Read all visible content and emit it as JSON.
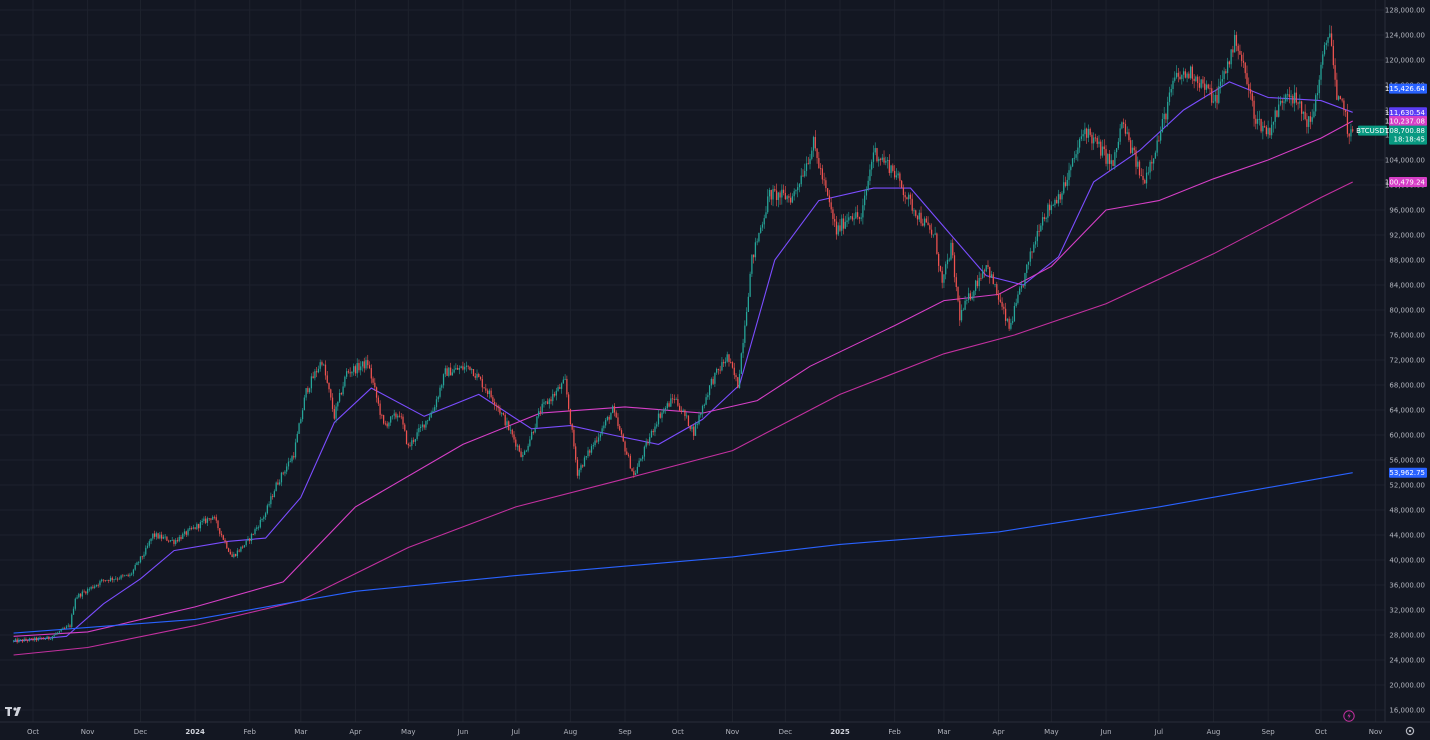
{
  "chart_data": {
    "type": "candlestick",
    "symbol": "BTCUSDT",
    "ylim": [
      15000,
      129000
    ],
    "y_ticks": [
      {
        "value": 128000,
        "label": "128,000.00"
      },
      {
        "value": 124000,
        "label": "124,000.00"
      },
      {
        "value": 120000,
        "label": "120,000.00"
      },
      {
        "value": 116000,
        "label": "116,000.00"
      },
      {
        "value": 112000,
        "label": "112,000.00"
      },
      {
        "value": 108000,
        "label": "108,000.00"
      },
      {
        "value": 104000,
        "label": "104,000.00"
      },
      {
        "value": 100000,
        "label": "100,000.00"
      },
      {
        "value": 96000,
        "label": "96,000.00"
      },
      {
        "value": 92000,
        "label": "92,000.00"
      },
      {
        "value": 88000,
        "label": "88,000.00"
      },
      {
        "value": 84000,
        "label": "84,000.00"
      },
      {
        "value": 80000,
        "label": "80,000.00"
      },
      {
        "value": 76000,
        "label": "76,000.00"
      },
      {
        "value": 72000,
        "label": "72,000.00"
      },
      {
        "value": 68000,
        "label": "68,000.00"
      },
      {
        "value": 64000,
        "label": "64,000.00"
      },
      {
        "value": 60000,
        "label": "60,000.00"
      },
      {
        "value": 56000,
        "label": "56,000.00"
      },
      {
        "value": 52000,
        "label": "52,000.00"
      },
      {
        "value": 48000,
        "label": "48,000.00"
      },
      {
        "value": 44000,
        "label": "44,000.00"
      },
      {
        "value": 40000,
        "label": "40,000.00"
      },
      {
        "value": 36000,
        "label": "36,000.00"
      },
      {
        "value": 32000,
        "label": "32,000.00"
      },
      {
        "value": 28000,
        "label": "28,000.00"
      },
      {
        "value": 24000,
        "label": "24,000.00"
      },
      {
        "value": 20000,
        "label": "20,000.00"
      },
      {
        "value": 16000,
        "label": "16,000.00"
      }
    ],
    "x_ticks": [
      {
        "date": "2023-10-01",
        "label": "Oct",
        "bold": false
      },
      {
        "date": "2023-11-01",
        "label": "Nov",
        "bold": false
      },
      {
        "date": "2023-12-01",
        "label": "Dec",
        "bold": false
      },
      {
        "date": "2024-01-01",
        "label": "2024",
        "bold": true
      },
      {
        "date": "2024-02-01",
        "label": "Feb",
        "bold": false
      },
      {
        "date": "2024-03-01",
        "label": "Mar",
        "bold": false
      },
      {
        "date": "2024-04-01",
        "label": "Apr",
        "bold": false
      },
      {
        "date": "2024-05-01",
        "label": "May",
        "bold": false
      },
      {
        "date": "2024-06-01",
        "label": "Jun",
        "bold": false
      },
      {
        "date": "2024-07-01",
        "label": "Jul",
        "bold": false
      },
      {
        "date": "2024-08-01",
        "label": "Aug",
        "bold": false
      },
      {
        "date": "2024-09-01",
        "label": "Sep",
        "bold": false
      },
      {
        "date": "2024-10-01",
        "label": "Oct",
        "bold": false
      },
      {
        "date": "2024-11-01",
        "label": "Nov",
        "bold": false
      },
      {
        "date": "2024-12-01",
        "label": "Dec",
        "bold": false
      },
      {
        "date": "2025-01-01",
        "label": "2025",
        "bold": true
      },
      {
        "date": "2025-02-01",
        "label": "Feb",
        "bold": false
      },
      {
        "date": "2025-03-01",
        "label": "Mar",
        "bold": false
      },
      {
        "date": "2025-04-01",
        "label": "Apr",
        "bold": false
      },
      {
        "date": "2025-05-01",
        "label": "May",
        "bold": false
      },
      {
        "date": "2025-06-01",
        "label": "Jun",
        "bold": false
      },
      {
        "date": "2025-07-01",
        "label": "Jul",
        "bold": false
      },
      {
        "date": "2025-08-01",
        "label": "Aug",
        "bold": false
      },
      {
        "date": "2025-09-01",
        "label": "Sep",
        "bold": false
      },
      {
        "date": "2025-10-01",
        "label": "Oct",
        "bold": false
      },
      {
        "date": "2025-11-01",
        "label": "Nov",
        "bold": false
      }
    ],
    "price_path": [
      [
        "2023-09-20",
        27000
      ],
      [
        "2023-10-10",
        27500
      ],
      [
        "2023-10-22",
        29500
      ],
      [
        "2023-10-25",
        34000
      ],
      [
        "2023-11-10",
        36800
      ],
      [
        "2023-11-25",
        37500
      ],
      [
        "2023-12-04",
        41500
      ],
      [
        "2023-12-08",
        44000
      ],
      [
        "2023-12-20",
        43000
      ],
      [
        "2024-01-08",
        46500
      ],
      [
        "2024-01-11",
        47000
      ],
      [
        "2024-01-22",
        40500
      ],
      [
        "2024-01-31",
        43000
      ],
      [
        "2024-02-10",
        47500
      ],
      [
        "2024-02-16",
        52000
      ],
      [
        "2024-02-26",
        57000
      ],
      [
        "2024-03-04",
        67000
      ],
      [
        "2024-03-13",
        72000
      ],
      [
        "2024-03-20",
        63000
      ],
      [
        "2024-03-27",
        70000
      ],
      [
        "2024-04-08",
        71500
      ],
      [
        "2024-04-17",
        61500
      ],
      [
        "2024-04-26",
        63500
      ],
      [
        "2024-05-01",
        58000
      ],
      [
        "2024-05-15",
        64000
      ],
      [
        "2024-05-22",
        70000
      ],
      [
        "2024-06-05",
        71000
      ],
      [
        "2024-06-20",
        65000
      ],
      [
        "2024-07-05",
        56500
      ],
      [
        "2024-07-15",
        64000
      ],
      [
        "2024-07-29",
        68500
      ],
      [
        "2024-08-05",
        54000
      ],
      [
        "2024-08-25",
        64000
      ],
      [
        "2024-09-06",
        53500
      ],
      [
        "2024-09-20",
        63000
      ],
      [
        "2024-09-29",
        66000
      ],
      [
        "2024-10-10",
        60500
      ],
      [
        "2024-10-20",
        68500
      ],
      [
        "2024-10-29",
        72500
      ],
      [
        "2024-11-04",
        68000
      ],
      [
        "2024-11-12",
        88000
      ],
      [
        "2024-11-22",
        98500
      ],
      [
        "2024-12-05",
        98000
      ],
      [
        "2024-12-17",
        106500
      ],
      [
        "2024-12-30",
        92500
      ],
      [
        "2025-01-07",
        95500
      ],
      [
        "2025-01-13",
        94500
      ],
      [
        "2025-01-20",
        105500
      ],
      [
        "2025-01-31",
        102500
      ],
      [
        "2025-02-10",
        97000
      ],
      [
        "2025-02-24",
        91500
      ],
      [
        "2025-02-28",
        84000
      ],
      [
        "2025-03-05",
        90000
      ],
      [
        "2025-03-10",
        79000
      ],
      [
        "2025-03-25",
        87500
      ],
      [
        "2025-04-07",
        77000
      ],
      [
        "2025-04-15",
        84500
      ],
      [
        "2025-04-25",
        94500
      ],
      [
        "2025-05-08",
        99500
      ],
      [
        "2025-05-20",
        109000
      ],
      [
        "2025-06-05",
        103000
      ],
      [
        "2025-06-10",
        110000
      ],
      [
        "2025-06-22",
        100500
      ],
      [
        "2025-07-01",
        107500
      ],
      [
        "2025-07-10",
        117000
      ],
      [
        "2025-07-20",
        118000
      ],
      [
        "2025-08-02",
        113500
      ],
      [
        "2025-08-14",
        123500
      ],
      [
        "2025-08-25",
        110500
      ],
      [
        "2025-09-01",
        108500
      ],
      [
        "2025-09-12",
        115500
      ],
      [
        "2025-09-25",
        109500
      ],
      [
        "2025-10-01",
        118500
      ],
      [
        "2025-10-06",
        125500
      ],
      [
        "2025-10-10",
        113000
      ],
      [
        "2025-10-14",
        113000
      ],
      [
        "2025-10-17",
        107000
      ],
      [
        "2025-10-19",
        108700
      ]
    ],
    "series": [
      {
        "name": "",
        "color": "#7b4dff",
        "points": [
          [
            "2023-09-20",
            27000
          ],
          [
            "2023-10-20",
            27800
          ],
          [
            "2023-11-10",
            33000
          ],
          [
            "2023-12-01",
            37000
          ],
          [
            "2023-12-20",
            41500
          ],
          [
            "2024-01-20",
            43000
          ],
          [
            "2024-02-10",
            43500
          ],
          [
            "2024-03-01",
            50000
          ],
          [
            "2024-03-20",
            62000
          ],
          [
            "2024-04-10",
            67500
          ],
          [
            "2024-05-10",
            63000
          ],
          [
            "2024-06-10",
            66500
          ],
          [
            "2024-07-10",
            61000
          ],
          [
            "2024-08-01",
            61500
          ],
          [
            "2024-08-25",
            60000
          ],
          [
            "2024-09-20",
            58500
          ],
          [
            "2024-10-15",
            62500
          ],
          [
            "2024-11-05",
            68000
          ],
          [
            "2024-11-25",
            88000
          ],
          [
            "2024-12-20",
            97500
          ],
          [
            "2025-01-20",
            99500
          ],
          [
            "2025-02-10",
            99500
          ],
          [
            "2025-03-05",
            92000
          ],
          [
            "2025-03-25",
            85500
          ],
          [
            "2025-04-15",
            84000
          ],
          [
            "2025-05-05",
            88500
          ],
          [
            "2025-05-25",
            100500
          ],
          [
            "2025-06-20",
            105500
          ],
          [
            "2025-07-15",
            112000
          ],
          [
            "2025-08-10",
            116500
          ],
          [
            "2025-09-01",
            114000
          ],
          [
            "2025-10-01",
            113500
          ],
          [
            "2025-10-19",
            111630.54
          ]
        ]
      },
      {
        "name": "",
        "color": "#d63fc7",
        "points": [
          [
            "2023-09-20",
            27800
          ],
          [
            "2023-11-01",
            28500
          ],
          [
            "2024-01-01",
            32500
          ],
          [
            "2024-02-20",
            36500
          ],
          [
            "2024-04-01",
            48500
          ],
          [
            "2024-06-01",
            58500
          ],
          [
            "2024-07-15",
            63500
          ],
          [
            "2024-09-01",
            64500
          ],
          [
            "2024-10-15",
            63500
          ],
          [
            "2024-11-15",
            65500
          ],
          [
            "2024-12-15",
            71000
          ],
          [
            "2025-02-01",
            77500
          ],
          [
            "2025-03-01",
            81500
          ],
          [
            "2025-04-01",
            82500
          ],
          [
            "2025-05-01",
            87000
          ],
          [
            "2025-06-01",
            96000
          ],
          [
            "2025-07-01",
            97500
          ],
          [
            "2025-08-01",
            101000
          ],
          [
            "2025-09-01",
            104000
          ],
          [
            "2025-10-01",
            107500
          ],
          [
            "2025-10-19",
            110237.08
          ]
        ]
      },
      {
        "name": "",
        "color": "#c2309f",
        "points": [
          [
            "2023-09-20",
            24800
          ],
          [
            "2023-11-01",
            26000
          ],
          [
            "2024-01-01",
            29500
          ],
          [
            "2024-03-01",
            33500
          ],
          [
            "2024-05-01",
            42000
          ],
          [
            "2024-07-01",
            48500
          ],
          [
            "2024-09-01",
            53000
          ],
          [
            "2024-11-01",
            57500
          ],
          [
            "2025-01-01",
            66500
          ],
          [
            "2025-03-01",
            73000
          ],
          [
            "2025-04-10",
            76000
          ],
          [
            "2025-06-01",
            81000
          ],
          [
            "2025-08-01",
            89000
          ],
          [
            "2025-10-01",
            98000
          ],
          [
            "2025-10-19",
            100479.24
          ]
        ]
      },
      {
        "name": "",
        "color": "#2962ff",
        "points": [
          [
            "2023-09-20",
            28300
          ],
          [
            "2024-01-01",
            30500
          ],
          [
            "2024-04-01",
            35000
          ],
          [
            "2024-07-01",
            37500
          ],
          [
            "2024-11-01",
            40500
          ],
          [
            "2025-01-01",
            42500
          ],
          [
            "2025-04-01",
            44500
          ],
          [
            "2025-07-01",
            48500
          ],
          [
            "2025-10-19",
            53962.75
          ]
        ]
      }
    ],
    "price_badges": [
      {
        "text": "115,426.64",
        "value": 115426.64,
        "color": "#2962ff"
      },
      {
        "text": "111,630.54",
        "value": 111630.54,
        "color": "#5b3df5"
      },
      {
        "text": "110,237.08",
        "value": 110237.08,
        "color": "#d63fc7"
      },
      {
        "text": "100,479.24",
        "value": 100479.24,
        "color": "#d63fc7"
      },
      {
        "text": "53,962.75",
        "value": 53962.75,
        "color": "#2962ff"
      }
    ],
    "last_price": {
      "symbol": "BTCUSDT",
      "price": "108,700.88",
      "countdown": "18:18:45",
      "value": 108700.88,
      "color": "#089981"
    },
    "colors": {
      "up": "#26a69a",
      "down": "#ef5350",
      "background": "#131722",
      "grid": "#1e222d"
    },
    "grid": true
  },
  "ui": {
    "logo": "tradingview-logo-icon",
    "bottom_right_icon": "settings-icon",
    "lightning_icon": "lightning-icon"
  }
}
